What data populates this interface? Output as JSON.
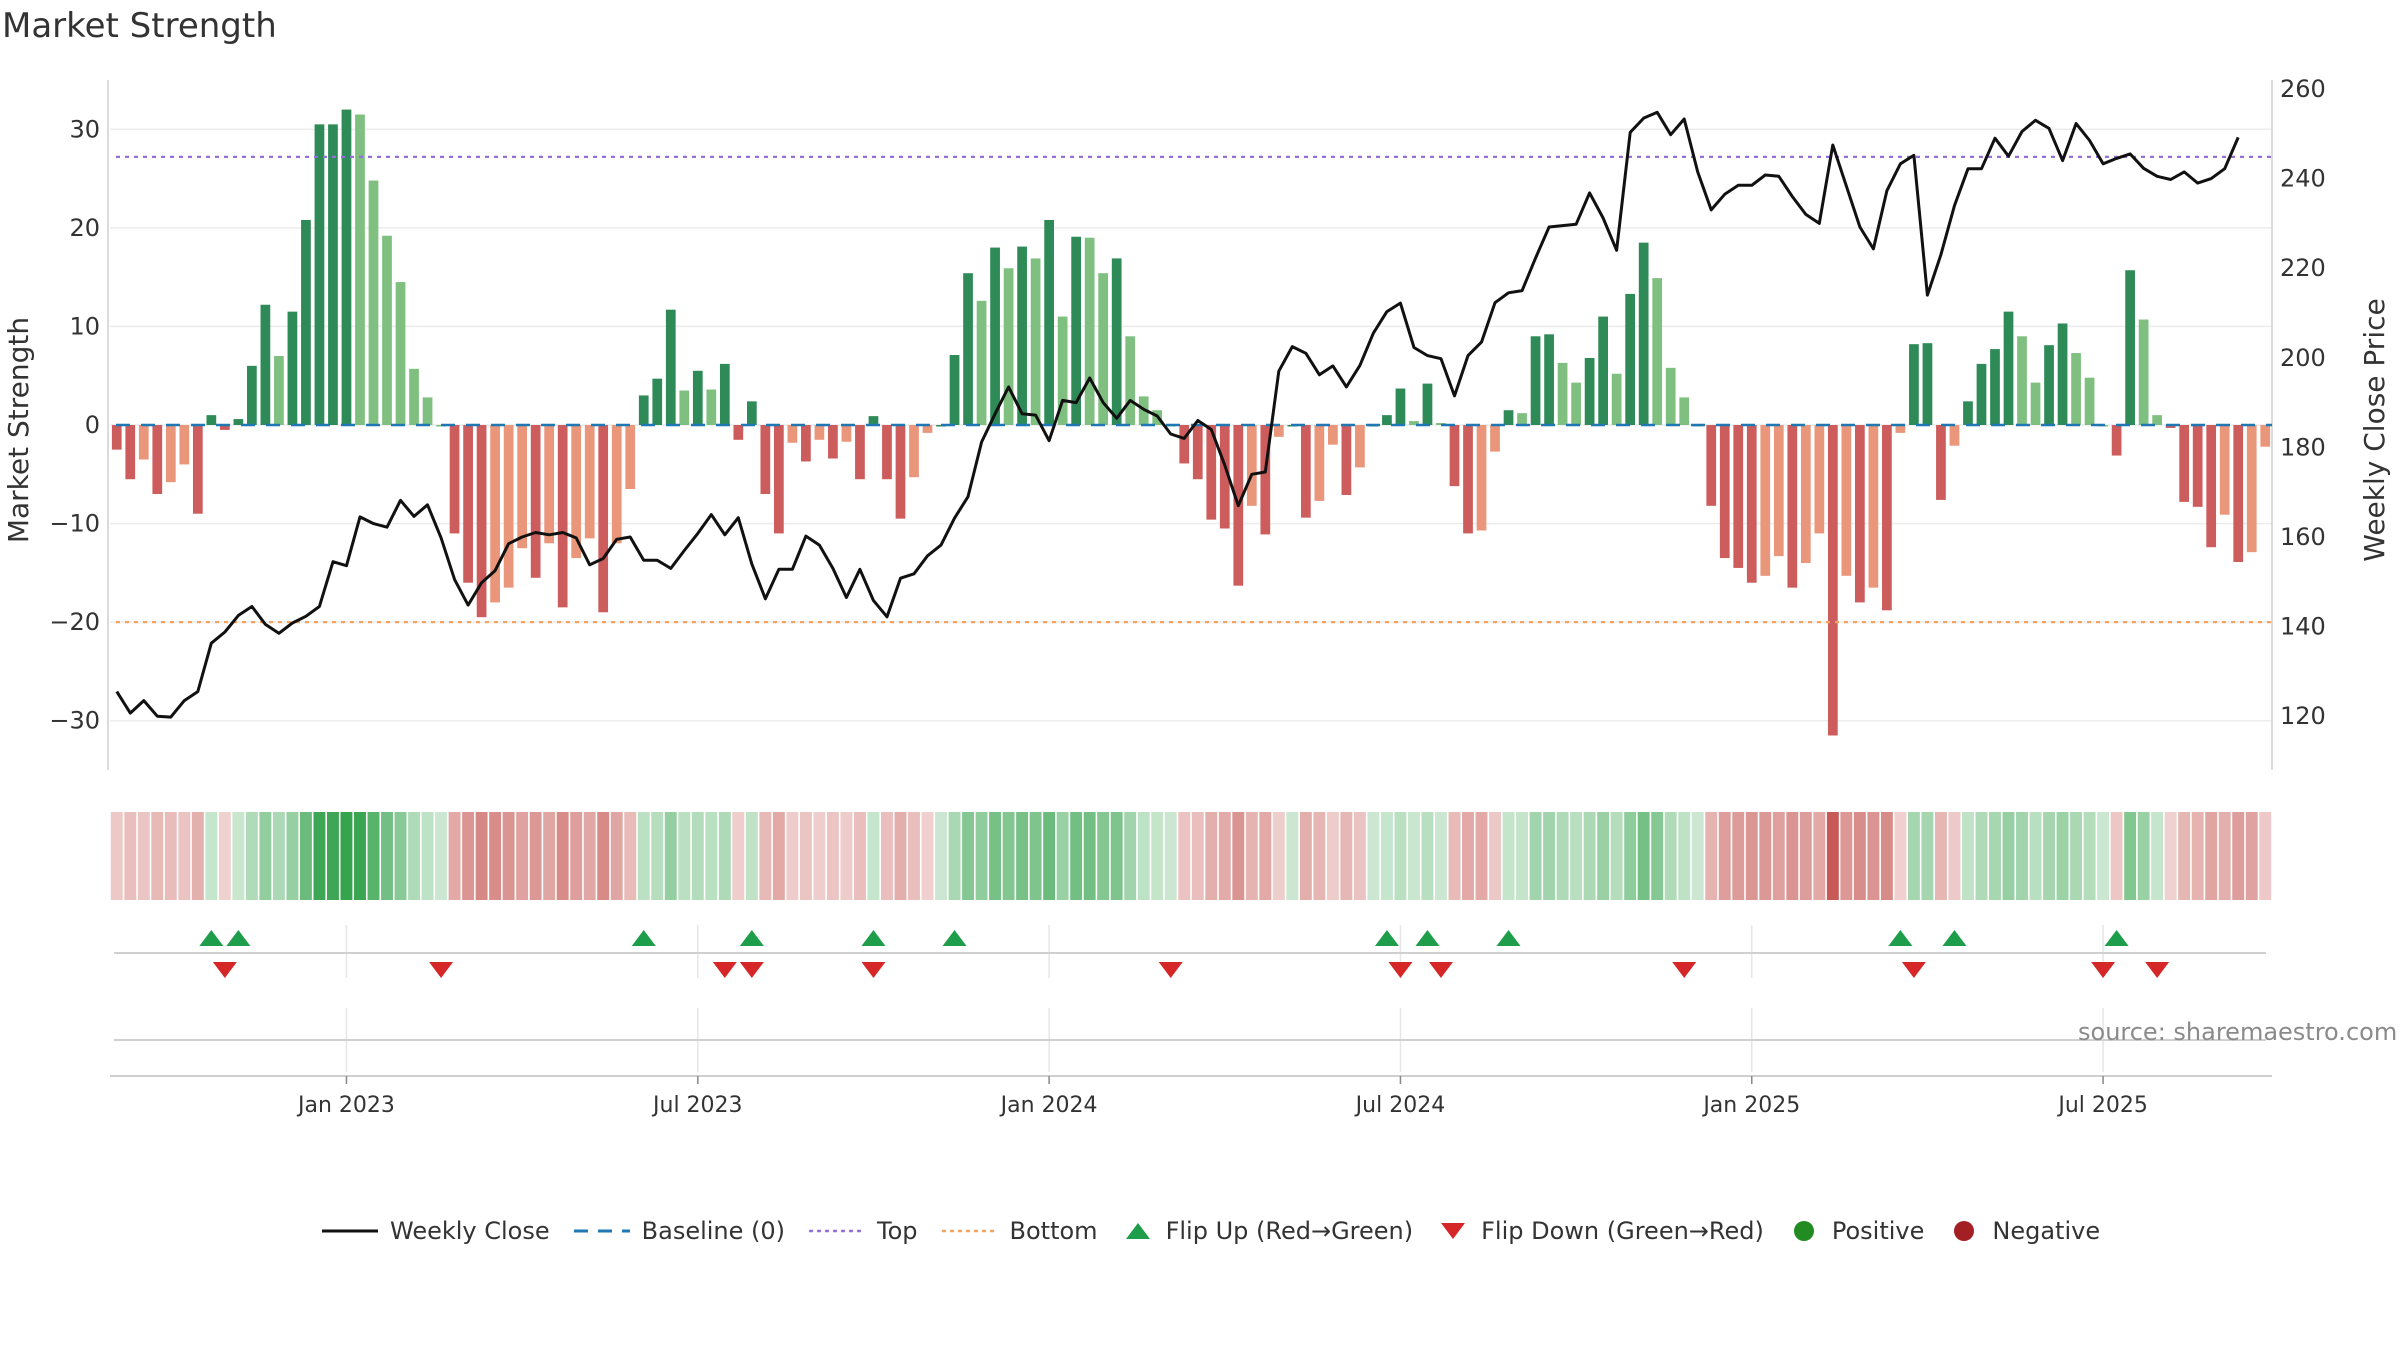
{
  "title": "Market Strength",
  "source": "source: sharemaestro.com",
  "colors": {
    "strong_green": "#2e8b57",
    "light_green": "#7fc080",
    "strong_red": "#cd5c5c",
    "light_red": "#e9967a",
    "line": "#111111",
    "top": "#9370db",
    "bottom": "#f4a460",
    "baseline": "#1f77b4",
    "flip_up": "#1e9e4a",
    "flip_down": "#d62728"
  },
  "chart_data": {
    "type": "bar",
    "xlabel": "",
    "ylabel": "Market Strength",
    "y2label": "Weekly Close Price",
    "ylim": [
      -35,
      35
    ],
    "y2lim": [
      108,
      262
    ],
    "yticks": [
      30,
      20,
      10,
      0,
      -10,
      -20,
      -30
    ],
    "ytick_labels": [
      "30",
      "20",
      "10",
      "0",
      "−10",
      "−20",
      "−30"
    ],
    "y2ticks": [
      260,
      240,
      220,
      200,
      180,
      160,
      140,
      120
    ],
    "xticks": [
      {
        "week": 17,
        "label": "Jan 2023"
      },
      {
        "week": 43,
        "label": "Jul 2023"
      },
      {
        "week": 69,
        "label": "Jan 2024"
      },
      {
        "week": 95,
        "label": "Jul 2024"
      },
      {
        "week": 121,
        "label": "Jan 2025"
      },
      {
        "week": 147,
        "label": "Jul 2025"
      }
    ],
    "reference_lines": {
      "baseline": 0,
      "top": 27.2,
      "bottom": -20
    },
    "strength": [
      -2.5,
      -5.5,
      -3.5,
      -7,
      -5.8,
      -4,
      -9,
      1,
      -0.5,
      0.6,
      6,
      12.2,
      7,
      11.5,
      20.8,
      30.5,
      30.5,
      32,
      31.5,
      24.8,
      19.2,
      14.5,
      5.7,
      2.8,
      0,
      -11,
      -16,
      -19.5,
      -18,
      -16.5,
      -12.5,
      -15.5,
      -12,
      -18.5,
      -13.5,
      -11.5,
      -19,
      -12,
      -6.5,
      3,
      4.7,
      11.7,
      3.5,
      5.5,
      3.6,
      6.2,
      -1.5,
      2.4,
      -7,
      -11,
      -1.8,
      -3.7,
      -1.5,
      -3.4,
      -1.7,
      -5.5,
      0.9,
      -5.5,
      -9.5,
      -5.3,
      -0.8,
      0,
      7.1,
      15.4,
      12.6,
      18,
      15.9,
      18.1,
      16.9,
      20.8,
      11,
      19.1,
      19,
      15.4,
      16.9,
      9,
      2.9,
      1.5,
      0,
      -3.9,
      -5.5,
      -9.6,
      -10.5,
      -16.3,
      -8.2,
      -11.1,
      -1.2,
      0,
      -9.4,
      -7.7,
      -2,
      -7.1,
      -4.3,
      0,
      1,
      3.7,
      0.4,
      4.2,
      0.2,
      -6.2,
      -11,
      -10.7,
      -2.7,
      1.5,
      1.2,
      9,
      9.2,
      6.3,
      4.3,
      6.8,
      11,
      5.2,
      13.3,
      18.5,
      14.9,
      5.8,
      2.8,
      0,
      -8.2,
      -13.5,
      -14.5,
      -16,
      -15.3,
      -13.3,
      -16.5,
      -14,
      -11,
      -31.5,
      -15.3,
      -18,
      -16.5,
      -18.8,
      -0.8,
      8.2,
      8.3,
      -7.6,
      -2.1,
      2.4,
      6.2,
      7.7,
      11.5,
      9,
      4.3,
      8.1,
      10.3,
      7.3,
      4.8,
      0,
      -3.1,
      15.7,
      10.7,
      1,
      -0.3,
      -7.8,
      -8.3,
      -12.4,
      -9.1,
      -13.9,
      -12.9,
      -2.2
    ],
    "weekly_close": [
      125.5,
      120.7,
      123.5,
      120,
      119.8,
      123.5,
      125.5,
      136.3,
      138.8,
      142.5,
      144.5,
      140.5,
      138.5,
      140.8,
      142.3,
      144.5,
      154.5,
      153.6,
      164.5,
      163,
      162.2,
      168.2,
      164.6,
      167.2,
      159.8,
      150.5,
      144.8,
      149.8,
      152.5,
      158.5,
      160,
      161,
      160.5,
      161,
      159.8,
      153.8,
      155.2,
      159.5,
      160,
      154.8,
      154.8,
      153,
      157,
      160.8,
      165,
      160.5,
      164.3,
      154,
      146.2,
      152.8,
      152.8,
      160.2,
      158.2,
      153,
      146.5,
      152.8,
      145.8,
      142.2,
      150.8,
      151.8,
      155.8,
      158.2,
      164.2,
      169,
      181.2,
      187.5,
      193.5,
      187.5,
      187.2,
      181.5,
      190.5,
      190,
      195.5,
      190,
      186.5,
      190.5,
      188.5,
      187,
      183,
      182,
      186,
      184,
      176,
      167,
      174,
      174.5,
      197,
      202.5,
      201,
      196.2,
      198.2,
      193.5,
      198.3,
      205.5,
      210.3,
      212.2,
      202.3,
      200.5,
      199.8,
      191.5,
      200.5,
      203.5,
      212.3,
      214.5,
      215,
      222.3,
      229.2,
      229.5,
      229.8,
      236.8,
      231.2,
      224,
      250.3,
      253.5,
      254.8,
      249.8,
      253.3,
      241.5,
      233,
      236.5,
      238.5,
      238.5,
      240.8,
      240.5,
      236,
      232,
      230,
      247.5,
      238.3,
      229.2,
      224.3,
      237.3,
      243.3,
      245.2,
      214,
      223,
      234,
      242.2,
      242.2,
      249,
      245,
      250.5,
      253,
      251.2,
      244,
      252.3,
      248.5,
      243.3,
      244.5,
      245.5,
      242.3,
      240.5,
      239.8,
      241.5,
      239,
      240,
      242.2,
      249.2
    ],
    "flips_up": [
      7,
      9,
      39,
      47,
      56,
      62,
      94,
      97,
      103,
      132,
      136,
      148
    ],
    "flips_down": [
      8,
      24,
      45,
      47,
      56,
      78,
      95,
      98,
      116,
      133,
      147,
      151
    ]
  },
  "legend": {
    "items": [
      {
        "label": "Weekly Close",
        "icon": "solid-line"
      },
      {
        "label": "Baseline (0)",
        "icon": "dashed-line"
      },
      {
        "label": "Top",
        "icon": "dotted-line"
      },
      {
        "label": "Bottom",
        "icon": "dotted-line"
      },
      {
        "label": "Flip Up (Red→Green)",
        "icon": "triangle-up"
      },
      {
        "label": "Flip Down (Green→Red)",
        "icon": "triangle-down"
      },
      {
        "label": "Positive",
        "icon": "circle"
      },
      {
        "label": "Negative",
        "icon": "circle"
      }
    ]
  }
}
